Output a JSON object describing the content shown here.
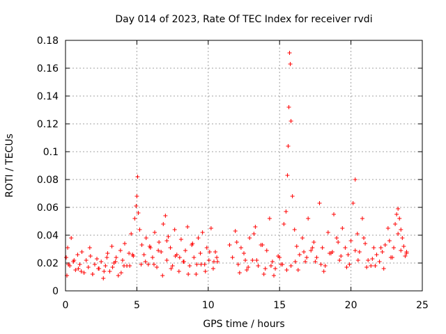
{
  "chart_data": {
    "type": "scatter",
    "title": "Day 014 of 2023, Rate Of TEC Index for receiver rvdi",
    "xlabel": "GPS time / hours",
    "ylabel": "ROTI / TECUs",
    "xlim": [
      0,
      25
    ],
    "ylim": [
      0,
      0.18
    ],
    "xticks": [
      0,
      5,
      10,
      15,
      20,
      25
    ],
    "yticks": [
      0,
      0.02,
      0.04,
      0.06,
      0.08,
      0.1,
      0.12,
      0.14,
      0.16,
      0.18
    ],
    "xtick_labels": [
      "0",
      "5",
      "10",
      "15",
      "20",
      "25"
    ],
    "ytick_labels": [
      "0",
      "0.02",
      "0.04",
      "0.06",
      "0.08",
      "0.1",
      "0.12",
      "0.14",
      "0.16",
      "0.18"
    ],
    "grid": true,
    "marker": "+",
    "color": "#ff0000",
    "series": [
      {
        "name": "ROTI",
        "x": [
          0.05,
          0.15,
          0.3,
          0.4,
          0.55,
          0.7,
          0.85,
          1.0,
          1.15,
          1.3,
          1.45,
          1.6,
          1.75,
          1.9,
          2.05,
          2.2,
          2.35,
          2.5,
          2.65,
          2.8,
          2.95,
          3.1,
          3.25,
          3.4,
          3.55,
          3.7,
          3.85,
          4.0,
          4.15,
          4.3,
          4.45,
          4.6,
          4.75,
          4.85,
          4.95,
          5.0,
          5.05,
          5.1,
          5.2,
          5.35,
          5.5,
          5.65,
          5.8,
          5.95,
          6.1,
          6.25,
          6.4,
          6.55,
          6.7,
          6.85,
          7.0,
          7.1,
          7.2,
          7.35,
          7.5,
          7.65,
          7.8,
          7.95,
          8.1,
          8.25,
          8.4,
          8.55,
          8.7,
          8.85,
          9.0,
          9.15,
          9.3,
          9.45,
          9.6,
          9.75,
          9.9,
          10.05,
          10.2,
          10.35,
          10.5,
          10.65,
          11.5,
          11.7,
          11.9,
          12.1,
          12.3,
          12.5,
          12.7,
          12.9,
          13.1,
          13.3,
          13.5,
          13.7,
          13.9,
          14.1,
          14.3,
          14.5,
          14.7,
          14.9,
          15.1,
          15.3,
          15.45,
          15.55,
          15.6,
          15.65,
          15.7,
          15.75,
          15.8,
          15.9,
          16.05,
          16.2,
          16.4,
          16.6,
          16.8,
          17.0,
          17.2,
          17.4,
          17.6,
          17.8,
          18.0,
          18.2,
          18.4,
          18.6,
          18.8,
          19.0,
          19.2,
          19.4,
          19.6,
          19.8,
          20.0,
          20.15,
          20.3,
          20.45,
          20.6,
          20.8,
          21.0,
          21.2,
          21.4,
          21.6,
          21.8,
          22.0,
          22.2,
          22.4,
          22.6,
          22.8,
          23.0,
          23.1,
          23.2,
          23.3,
          23.4,
          23.5,
          23.6,
          23.7,
          23.8,
          23.9,
          0.2,
          0.6,
          1.1,
          1.7,
          2.3,
          2.9,
          3.5,
          4.1,
          4.7,
          5.3,
          5.9,
          6.5,
          7.1,
          7.7,
          8.3,
          8.9,
          9.5,
          10.1,
          10.6,
          12.0,
          12.6,
          13.2,
          13.8,
          14.4,
          15.0,
          15.5,
          16.1,
          16.7,
          17.3,
          17.9,
          18.5,
          19.1,
          19.7,
          20.3,
          20.9,
          21.5,
          22.1,
          22.7,
          23.3,
          23.9,
          0.1,
          0.9,
          1.9,
          2.7,
          3.3,
          3.9,
          4.5,
          5.6,
          6.2,
          6.8,
          7.4,
          8.0,
          8.6,
          9.2,
          9.8,
          10.4,
          12.2,
          12.8,
          13.4,
          14.0,
          14.6,
          15.2,
          15.8,
          16.3,
          16.9,
          17.5,
          18.1,
          18.7,
          19.3,
          19.9,
          20.5,
          21.1,
          21.7,
          22.3,
          22.9,
          23.5
        ],
        "y": [
          0.024,
          0.031,
          0.018,
          0.038,
          0.021,
          0.015,
          0.026,
          0.019,
          0.028,
          0.013,
          0.022,
          0.017,
          0.025,
          0.012,
          0.019,
          0.023,
          0.016,
          0.021,
          0.009,
          0.018,
          0.027,
          0.014,
          0.032,
          0.02,
          0.024,
          0.011,
          0.029,
          0.022,
          0.034,
          0.018,
          0.027,
          0.041,
          0.025,
          0.052,
          0.061,
          0.068,
          0.082,
          0.056,
          0.044,
          0.033,
          0.026,
          0.038,
          0.019,
          0.031,
          0.024,
          0.042,
          0.017,
          0.035,
          0.028,
          0.048,
          0.054,
          0.022,
          0.039,
          0.031,
          0.018,
          0.044,
          0.026,
          0.014,
          0.037,
          0.021,
          0.029,
          0.046,
          0.018,
          0.033,
          0.024,
          0.012,
          0.038,
          0.027,
          0.042,
          0.019,
          0.031,
          0.022,
          0.045,
          0.016,
          0.028,
          0.021,
          0.033,
          0.024,
          0.043,
          0.019,
          0.031,
          0.027,
          0.015,
          0.038,
          0.022,
          0.046,
          0.018,
          0.033,
          0.012,
          0.029,
          0.052,
          0.021,
          0.016,
          0.025,
          0.019,
          0.048,
          0.057,
          0.083,
          0.104,
          0.132,
          0.171,
          0.163,
          0.122,
          0.068,
          0.044,
          0.032,
          0.026,
          0.038,
          0.021,
          0.052,
          0.029,
          0.035,
          0.024,
          0.063,
          0.031,
          0.018,
          0.042,
          0.027,
          0.055,
          0.038,
          0.022,
          0.045,
          0.031,
          0.026,
          0.036,
          0.063,
          0.08,
          0.041,
          0.028,
          0.052,
          0.034,
          0.022,
          0.018,
          0.031,
          0.026,
          0.021,
          0.028,
          0.033,
          0.045,
          0.024,
          0.031,
          0.048,
          0.055,
          0.059,
          0.052,
          0.044,
          0.038,
          0.032,
          0.025,
          0.028,
          0.019,
          0.022,
          0.014,
          0.031,
          0.016,
          0.024,
          0.021,
          0.018,
          0.026,
          0.019,
          0.032,
          0.029,
          0.036,
          0.025,
          0.021,
          0.034,
          0.019,
          0.028,
          0.024,
          0.035,
          0.022,
          0.041,
          0.033,
          0.018,
          0.024,
          0.015,
          0.021,
          0.028,
          0.031,
          0.019,
          0.027,
          0.035,
          0.017,
          0.029,
          0.038,
          0.023,
          0.031,
          0.036,
          0.041,
          0.027,
          0.011,
          0.016,
          0.012,
          0.014,
          0.017,
          0.013,
          0.018,
          0.021,
          0.019,
          0.011,
          0.016,
          0.024,
          0.012,
          0.019,
          0.014,
          0.021,
          0.013,
          0.017,
          0.022,
          0.016,
          0.011,
          0.019,
          0.018,
          0.015,
          0.024,
          0.021,
          0.014,
          0.028,
          0.025,
          0.019,
          0.022,
          0.017,
          0.018,
          0.016,
          0.024,
          0.029
        ]
      }
    ]
  }
}
